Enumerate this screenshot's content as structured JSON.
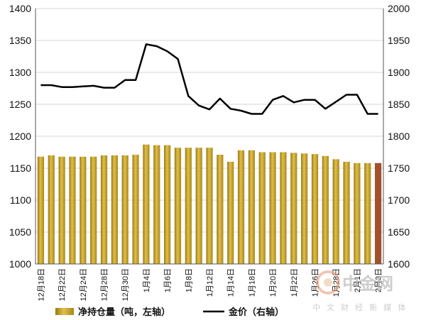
{
  "chart_data": {
    "type": "bar+line",
    "categories": [
      "12月18日",
      "12月20日",
      "12月22日",
      "12月23日",
      "12月24日",
      "12月27日",
      "12月28日",
      "12月29日",
      "12月30日",
      "12月31日",
      "1月4日",
      "1月5日",
      "1月6日",
      "1月7日",
      "1月8日",
      "1月11日",
      "1月12日",
      "1月13日",
      "1月14日",
      "1月15日",
      "1月18日",
      "1月19日",
      "1月20日",
      "1月21日",
      "1月22日",
      "1月25日",
      "1月26日",
      "1月27日",
      "1月28日",
      "1月29日",
      "2月1日",
      "2月2日",
      "2月3日"
    ],
    "x_tick_labels": [
      "12月18日",
      "12月22日",
      "12月24日",
      "12月28日",
      "12月30日",
      "1月4日",
      "1月6日",
      "1月8日",
      "1月12日",
      "1月14日",
      "1月18日",
      "1月20日",
      "1月22日",
      "1月26日",
      "1月28日",
      "2月1日",
      "2月3日"
    ],
    "series": [
      {
        "name": "净持仓量（吨，左轴）",
        "axis": "left",
        "kind": "bar",
        "values": [
          1168,
          1170,
          1168,
          1168,
          1168,
          1168,
          1170,
          1170,
          1170,
          1171,
          1187,
          1186,
          1186,
          1182,
          1182,
          1182,
          1182,
          1171,
          1160,
          1178,
          1178,
          1175,
          1175,
          1175,
          1174,
          1173,
          1172,
          1169,
          1164,
          1160,
          1158,
          1158,
          1158
        ]
      },
      {
        "name": "金价（右轴）",
        "axis": "right",
        "kind": "line",
        "values": [
          1880,
          1880,
          1877,
          1877,
          1878,
          1879,
          1876,
          1876,
          1888,
          1888,
          1944,
          1941,
          1933,
          1921,
          1863,
          1848,
          1842,
          1859,
          1843,
          1840,
          1835,
          1835,
          1857,
          1863,
          1853,
          1857,
          1857,
          1843,
          1854,
          1865,
          1865,
          1835,
          1835
        ]
      }
    ],
    "y_left": {
      "min": 1000,
      "max": 1400,
      "ticks": [
        "1000",
        "1050",
        "1100",
        "1150",
        "1200",
        "1250",
        "1300",
        "1350",
        "1400"
      ]
    },
    "y_right": {
      "min": 1600,
      "max": 2000,
      "ticks": [
        "1600",
        "1650",
        "1700",
        "1750",
        "1800",
        "1850",
        "1900",
        "1950",
        "2000"
      ]
    },
    "grid": "horizontal",
    "legend_position": "bottom",
    "colors": {
      "bar": "#c9a428",
      "bar_last": "#a0522d",
      "line": "#000000"
    }
  },
  "watermark": {
    "text": "中金网",
    "sub": "中 文 财 经 新 媒 体"
  }
}
